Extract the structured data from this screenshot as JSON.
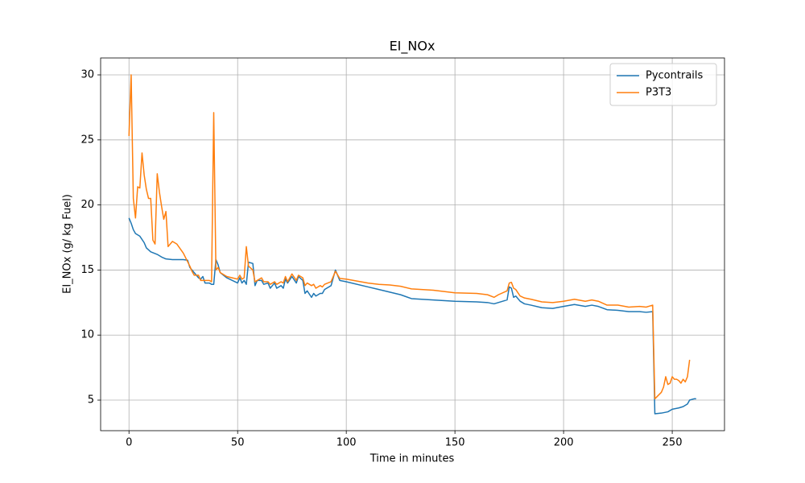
{
  "chart_data": {
    "type": "line",
    "title": "EI_NOx",
    "x_label": "Time in minutes",
    "y_label": "EI_NOx (g/ kg Fuel)",
    "xlim": [
      -13.05,
      274.05
    ],
    "ylim": [
      2.65,
      31.3
    ],
    "xticks": [
      0,
      50,
      100,
      150,
      200,
      250
    ],
    "yticks": [
      5,
      10,
      15,
      20,
      25,
      30
    ],
    "grid": true,
    "legend": "upper-right",
    "series": [
      {
        "name": "Pycontrails",
        "color": "#1f77b4",
        "x": [
          0,
          1,
          2,
          3,
          5,
          7,
          8,
          10,
          13,
          15,
          17,
          20,
          25,
          27,
          28,
          30,
          32,
          33,
          34,
          35,
          37,
          38,
          39,
          40,
          41,
          42,
          45,
          50,
          51,
          52,
          53,
          54,
          55,
          57,
          58,
          59,
          61,
          62,
          64,
          65,
          67,
          68,
          70,
          71,
          72,
          73,
          75,
          77,
          78,
          80,
          81,
          82,
          84,
          85,
          86,
          88,
          89,
          90,
          93,
          95,
          97,
          100,
          110,
          115,
          120,
          125,
          130,
          140,
          150,
          160,
          165,
          168,
          170,
          174,
          175,
          176,
          177,
          178,
          180,
          182,
          185,
          190,
          195,
          200,
          205,
          210,
          213,
          216,
          220,
          225,
          230,
          235,
          238,
          241,
          242,
          245,
          248,
          250,
          253,
          255,
          257,
          258,
          260,
          261
        ],
        "values": [
          19.0,
          18.6,
          18.1,
          17.8,
          17.6,
          17.1,
          16.7,
          16.4,
          16.2,
          16.0,
          15.85,
          15.8,
          15.8,
          15.75,
          15.2,
          14.8,
          14.4,
          14.3,
          14.5,
          14.0,
          14.0,
          13.9,
          13.9,
          15.8,
          15.4,
          14.8,
          14.4,
          14.0,
          14.4,
          14.0,
          14.2,
          13.9,
          15.6,
          15.5,
          13.8,
          14.2,
          14.2,
          13.9,
          14.0,
          13.6,
          14.0,
          13.6,
          13.8,
          13.6,
          14.3,
          14.0,
          14.5,
          14.0,
          14.5,
          14.2,
          13.2,
          13.4,
          12.9,
          13.2,
          13.0,
          13.2,
          13.2,
          13.5,
          13.8,
          15.0,
          14.2,
          14.1,
          13.7,
          13.5,
          13.3,
          13.1,
          12.8,
          12.7,
          12.6,
          12.55,
          12.5,
          12.4,
          12.5,
          12.7,
          13.7,
          13.6,
          12.9,
          13.0,
          12.6,
          12.4,
          12.3,
          12.1,
          12.05,
          12.2,
          12.35,
          12.2,
          12.3,
          12.2,
          11.95,
          11.9,
          11.8,
          11.8,
          11.75,
          11.8,
          3.95,
          4.0,
          4.1,
          4.3,
          4.4,
          4.5,
          4.7,
          5.0,
          5.1,
          5.1
        ]
      },
      {
        "name": "P3T3",
        "color": "#ff7f0e",
        "x": [
          0,
          1,
          2,
          3,
          4,
          5,
          6,
          7,
          8,
          9,
          10,
          11,
          12,
          13,
          14,
          15,
          16,
          17,
          18,
          20,
          22,
          25,
          28,
          29,
          30,
          32,
          33,
          35,
          37,
          38,
          39,
          40,
          41,
          42,
          45,
          50,
          51,
          52,
          53,
          54,
          55,
          57,
          58,
          59,
          61,
          62,
          64,
          65,
          67,
          68,
          70,
          71,
          72,
          73,
          75,
          77,
          78,
          80,
          81,
          82,
          84,
          85,
          86,
          88,
          89,
          90,
          93,
          95,
          97,
          100,
          110,
          115,
          120,
          125,
          130,
          140,
          150,
          160,
          165,
          168,
          170,
          174,
          175,
          176,
          177,
          178,
          180,
          182,
          185,
          190,
          195,
          200,
          205,
          210,
          213,
          216,
          220,
          225,
          230,
          235,
          238,
          241,
          242,
          245,
          246,
          247,
          248,
          249,
          250,
          251,
          252,
          253,
          254,
          255,
          256,
          257,
          258
        ],
        "values": [
          25.3,
          30.0,
          20.5,
          19.0,
          21.4,
          21.3,
          24.0,
          22.3,
          21.2,
          20.5,
          20.5,
          17.3,
          17.0,
          22.4,
          21.0,
          19.9,
          18.9,
          19.5,
          16.8,
          17.2,
          17.0,
          16.3,
          15.3,
          14.9,
          14.6,
          14.6,
          14.2,
          14.2,
          14.2,
          14.1,
          27.1,
          15.0,
          15.2,
          14.8,
          14.5,
          14.3,
          14.6,
          14.3,
          14.4,
          16.8,
          15.3,
          15.0,
          14.1,
          14.2,
          14.4,
          14.1,
          14.1,
          13.9,
          14.1,
          13.9,
          14.1,
          14.0,
          14.5,
          14.1,
          14.7,
          14.2,
          14.6,
          14.4,
          13.8,
          14.0,
          13.8,
          13.9,
          13.6,
          13.8,
          13.7,
          13.9,
          14.1,
          14.9,
          14.35,
          14.3,
          14.0,
          13.9,
          13.85,
          13.75,
          13.55,
          13.45,
          13.25,
          13.2,
          13.1,
          12.9,
          13.1,
          13.4,
          14.0,
          14.05,
          13.6,
          13.5,
          13.0,
          12.85,
          12.75,
          12.55,
          12.5,
          12.6,
          12.75,
          12.6,
          12.7,
          12.6,
          12.3,
          12.3,
          12.15,
          12.2,
          12.15,
          12.3,
          5.1,
          5.6,
          6.0,
          6.8,
          6.2,
          6.3,
          6.8,
          6.6,
          6.6,
          6.5,
          6.3,
          6.6,
          6.4,
          6.8,
          8.1
        ]
      }
    ]
  }
}
